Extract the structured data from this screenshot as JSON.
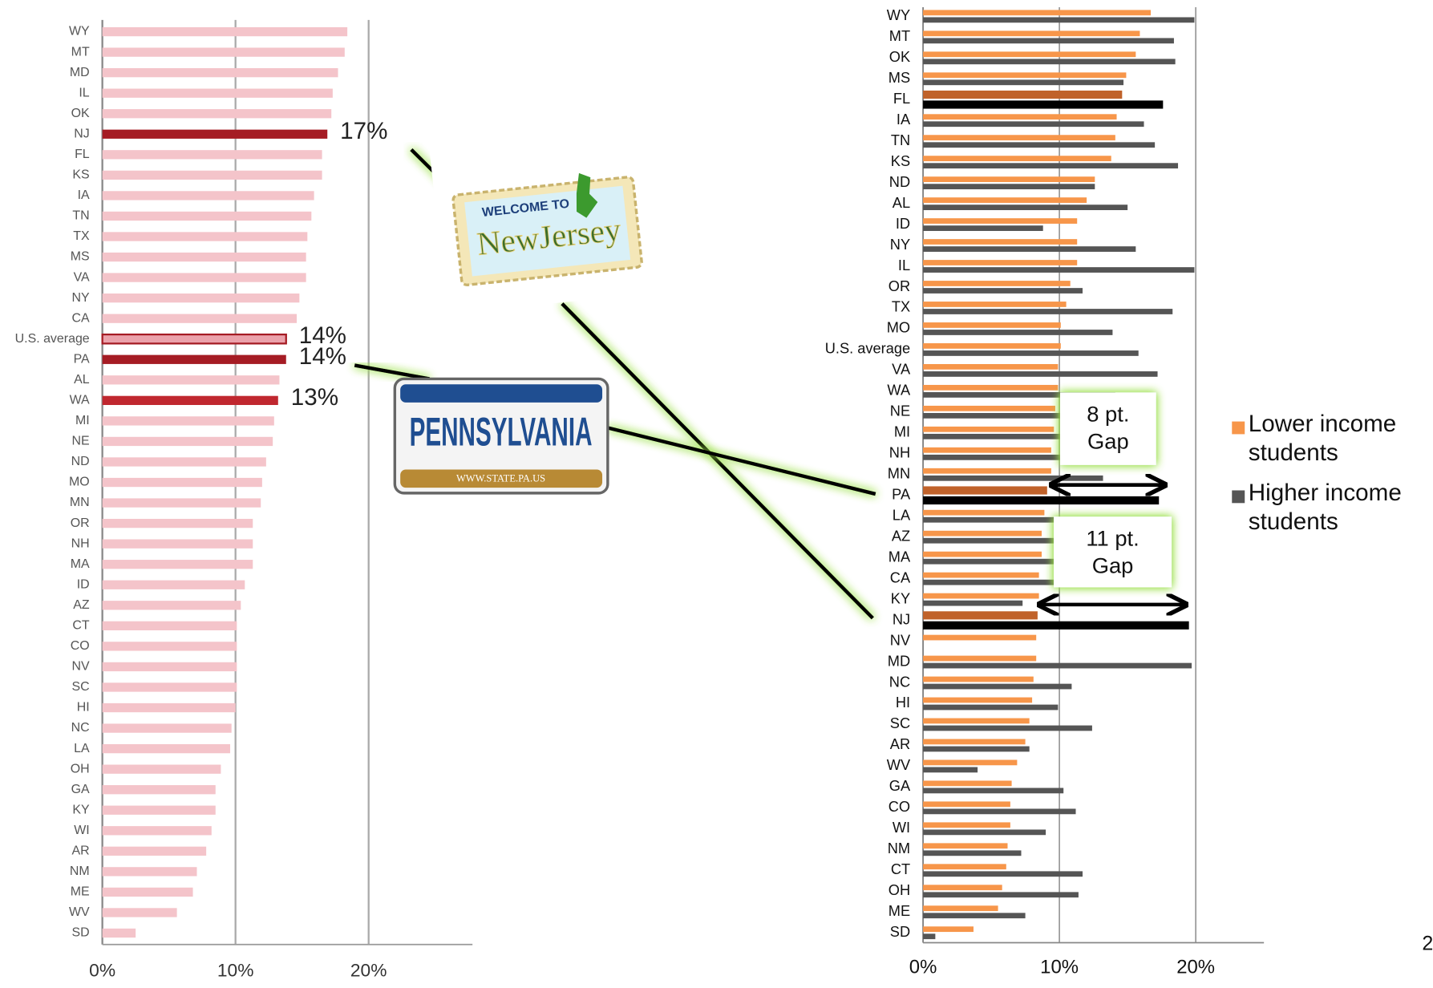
{
  "chart_data": [
    {
      "type": "bar",
      "categories": [
        "WY",
        "MT",
        "MD",
        "IL",
        "OK",
        "NJ",
        "FL",
        "KS",
        "IA",
        "TN",
        "TX",
        "MS",
        "VA",
        "NY",
        "CA",
        "U.S. average",
        "PA",
        "AL",
        "WA",
        "MI",
        "NE",
        "ND",
        "MO",
        "MN",
        "OR",
        "NH",
        "MA",
        "ID",
        "AZ",
        "CT",
        "CO",
        "NV",
        "SC",
        "HI",
        "NC",
        "LA",
        "OH",
        "GA",
        "KY",
        "WI",
        "AR",
        "NM",
        "ME",
        "WV",
        "SD"
      ],
      "values": [
        18.4,
        18.2,
        17.7,
        17.3,
        17.2,
        16.9,
        16.5,
        16.5,
        15.9,
        15.7,
        15.4,
        15.3,
        15.3,
        14.8,
        14.6,
        13.8,
        13.8,
        13.3,
        13.2,
        12.9,
        12.8,
        12.3,
        12.0,
        11.9,
        11.3,
        11.3,
        11.3,
        10.7,
        10.4,
        10.1,
        10.1,
        10.1,
        10.1,
        10.0,
        9.7,
        9.6,
        8.9,
        8.5,
        8.5,
        8.2,
        7.8,
        7.1,
        6.8,
        5.6,
        2.5
      ],
      "value_labels": [
        null,
        null,
        null,
        null,
        null,
        "17%",
        null,
        null,
        null,
        null,
        null,
        null,
        null,
        null,
        null,
        "14%",
        "14%",
        null,
        "13%",
        null,
        null,
        null,
        null,
        null,
        null,
        null,
        null,
        null,
        null,
        null,
        null,
        null,
        null,
        null,
        null,
        null,
        null,
        null,
        null,
        null,
        null,
        null,
        null,
        null,
        null
      ],
      "bar_colors": [
        "#f4c4ca",
        "#f4c4ca",
        "#f4c4ca",
        "#f4c4ca",
        "#f4c4ca",
        "#a51c24",
        "#f4c4ca",
        "#f4c4ca",
        "#f4c4ca",
        "#f4c4ca",
        "#f4c4ca",
        "#f4c4ca",
        "#f4c4ca",
        "#f4c4ca",
        "#f4c4ca",
        "#eba2ab",
        "#a51c24",
        "#f4c4ca",
        "#c0272f",
        "#f4c4ca",
        "#f4c4ca",
        "#f4c4ca",
        "#f4c4ca",
        "#f4c4ca",
        "#f4c4ca",
        "#f4c4ca",
        "#f4c4ca",
        "#f4c4ca",
        "#f4c4ca",
        "#f4c4ca",
        "#f4c4ca",
        "#f4c4ca",
        "#f4c4ca",
        "#f4c4ca",
        "#f4c4ca",
        "#f4c4ca",
        "#f4c4ca",
        "#f4c4ca",
        "#f4c4ca",
        "#f4c4ca",
        "#f4c4ca",
        "#f4c4ca",
        "#f4c4ca",
        "#f4c4ca",
        "#f4c4ca"
      ],
      "xlim": [
        0,
        27.8
      ],
      "xticks": [
        {
          "value": 0,
          "label": "0%"
        },
        {
          "value": 10,
          "label": "10%"
        },
        {
          "value": 20,
          "label": "20%"
        }
      ],
      "grid": true
    },
    {
      "type": "grouped-bar",
      "categories": [
        "WY",
        "MT",
        "OK",
        "MS",
        "FL",
        "IA",
        "TN",
        "KS",
        "ND",
        "AL",
        "ID",
        "NY",
        "IL",
        "OR",
        "TX",
        "MO",
        "U.S. average",
        "VA",
        "WA",
        "NE",
        "MI",
        "NH",
        "MN",
        "PA",
        "LA",
        "AZ",
        "MA",
        "CA",
        "KY",
        "NJ",
        "NV",
        "MD",
        "NC",
        "HI",
        "SC",
        "AR",
        "WV",
        "GA",
        "CO",
        "WI",
        "NM",
        "CT",
        "OH",
        "ME",
        "SD"
      ],
      "series": [
        {
          "name": "Lower income students",
          "color": "#f7964a",
          "values": [
            16.7,
            15.9,
            15.6,
            14.9,
            14.6,
            14.2,
            14.1,
            13.8,
            12.6,
            12.0,
            11.3,
            11.3,
            11.3,
            10.8,
            10.5,
            10.1,
            10.1,
            9.9,
            9.9,
            9.7,
            9.6,
            9.4,
            9.4,
            9.1,
            8.9,
            8.7,
            8.7,
            8.5,
            8.5,
            8.4,
            8.3,
            8.3,
            8.1,
            8.0,
            7.8,
            7.5,
            6.9,
            6.5,
            6.4,
            6.4,
            6.2,
            6.1,
            5.8,
            5.5,
            3.7
          ],
          "bar_colors": [
            "#f7964a",
            "#f7964a",
            "#f7964a",
            "#f7964a",
            "#c0622a",
            "#f7964a",
            "#f7964a",
            "#f7964a",
            "#f7964a",
            "#f7964a",
            "#f7964a",
            "#f7964a",
            "#f7964a",
            "#f7964a",
            "#f7964a",
            "#f7964a",
            "#f7964a",
            "#f7964a",
            "#f7964a",
            "#f7964a",
            "#f7964a",
            "#f7964a",
            "#f7964a",
            "#c0622a",
            "#f7964a",
            "#f7964a",
            "#f7964a",
            "#f7964a",
            "#f7964a",
            "#c0622a",
            "#f7964a",
            "#f7964a",
            "#f7964a",
            "#f7964a",
            "#f7964a",
            "#f7964a",
            "#f7964a",
            "#f7964a",
            "#f7964a",
            "#f7964a",
            "#f7964a",
            "#f7964a",
            "#f7964a",
            "#f7964a",
            "#f7964a"
          ]
        },
        {
          "name": "Higher income students",
          "color": "#555555",
          "values": [
            19.9,
            18.4,
            18.5,
            14.7,
            17.6,
            16.2,
            17.0,
            18.7,
            12.6,
            15.0,
            8.8,
            15.6,
            19.9,
            11.7,
            18.3,
            13.9,
            15.8,
            17.2,
            14.1,
            13.0,
            12.5,
            12.0,
            13.2,
            17.3,
            11.0,
            11.0,
            10.5,
            10.2,
            7.3,
            19.5,
            null,
            19.7,
            10.9,
            9.9,
            12.4,
            7.8,
            4.0,
            10.3,
            11.2,
            9.0,
            7.2,
            11.7,
            11.4,
            7.5,
            0.9
          ],
          "bar_colors": [
            "#555555",
            "#555555",
            "#555555",
            "#555555",
            "#000000",
            "#555555",
            "#555555",
            "#555555",
            "#555555",
            "#555555",
            "#555555",
            "#555555",
            "#555555",
            "#555555",
            "#555555",
            "#555555",
            "#555555",
            "#555555",
            "#555555",
            "#555555",
            "#555555",
            "#555555",
            "#555555",
            "#000000",
            "#555555",
            "#555555",
            "#555555",
            "#555555",
            "#555555",
            "#000000",
            "#555555",
            "#555555",
            "#555555",
            "#555555",
            "#555555",
            "#555555",
            "#555555",
            "#555555",
            "#555555",
            "#555555",
            "#555555",
            "#555555",
            "#555555",
            "#555555",
            "#555555"
          ]
        }
      ],
      "xlim": [
        0,
        25
      ],
      "xticks": [
        {
          "value": 0,
          "label": "0%"
        },
        {
          "value": 10,
          "label": "10%"
        },
        {
          "value": 20,
          "label": "20%"
        }
      ],
      "grid": true,
      "legend": "right",
      "annotations": [
        "8 pt. Gap",
        "11 pt. Gap"
      ]
    }
  ],
  "signs": {
    "nj_top": "WELCOME TO",
    "nj_main": "NewJersey",
    "pa_main": "PENNSYLVANIA",
    "pa_url": "WWW.STATE.PA.US"
  },
  "page_number": "2"
}
